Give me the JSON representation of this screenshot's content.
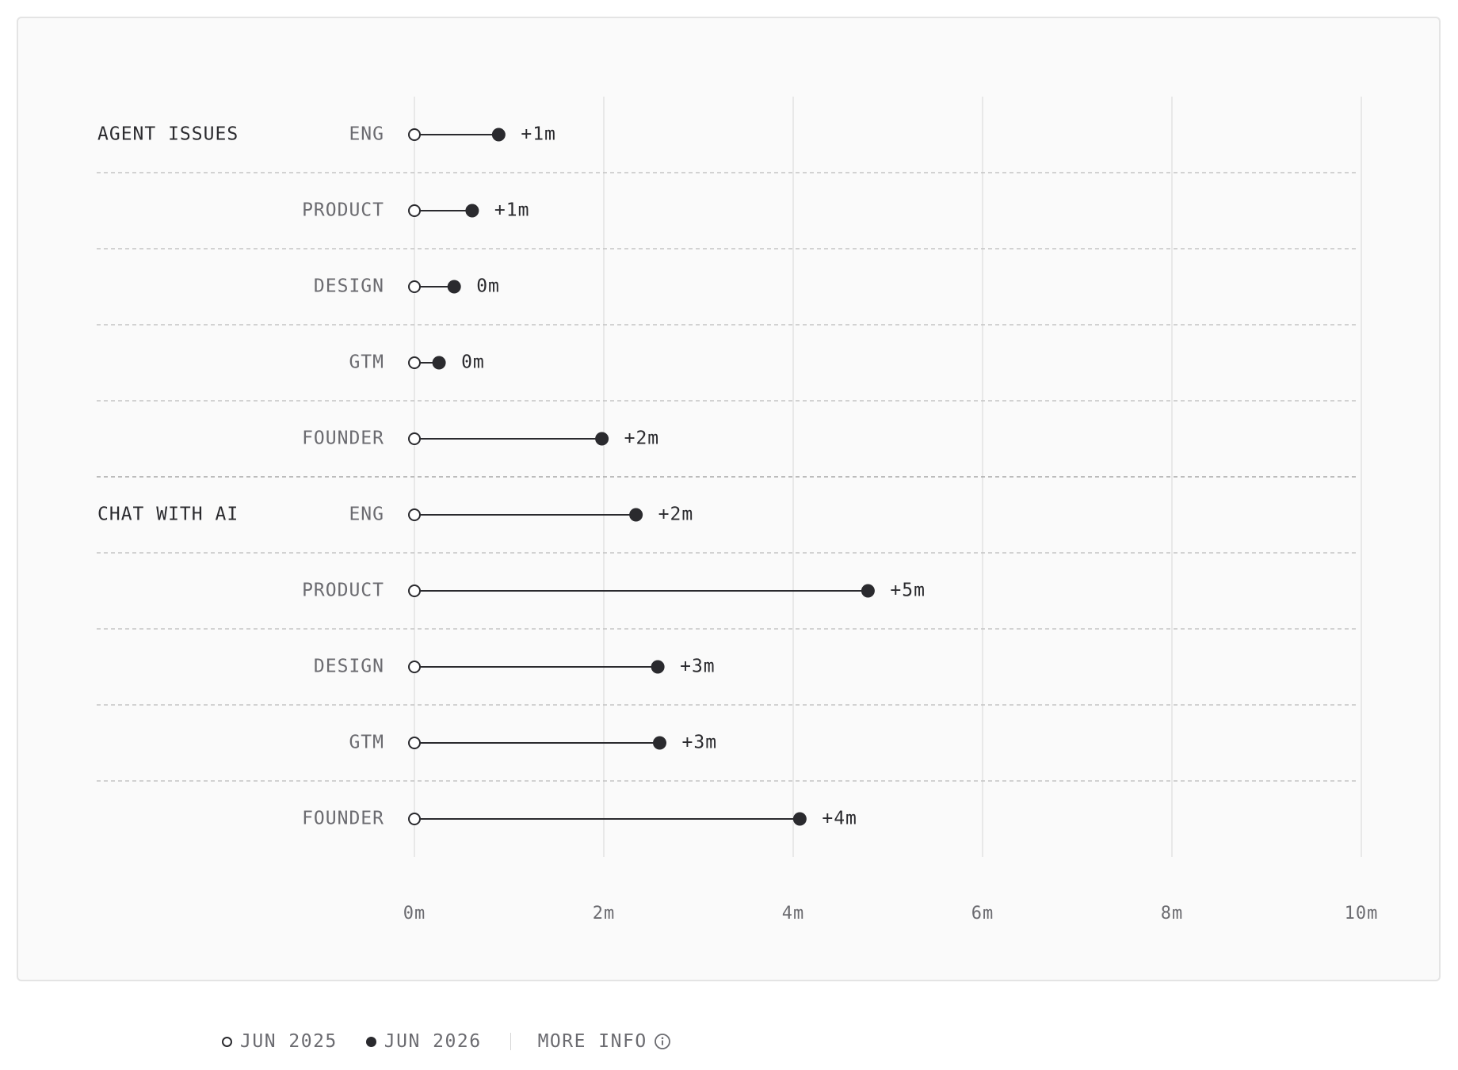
{
  "chart_data": {
    "type": "dumbbell",
    "x_axis": {
      "min": 0,
      "max": 10,
      "ticks": [
        {
          "value": 0,
          "label": "0m"
        },
        {
          "value": 2,
          "label": "2m"
        },
        {
          "value": 4,
          "label": "4m"
        },
        {
          "value": 6,
          "label": "6m"
        },
        {
          "value": 8,
          "label": "8m"
        },
        {
          "value": 10,
          "label": "10m"
        }
      ],
      "grid": true
    },
    "series": [
      {
        "name": "JUN 2025",
        "marker": "open-circle"
      },
      {
        "name": "JUN 2026",
        "marker": "filled-circle"
      }
    ],
    "groups": [
      {
        "label": "AGENT ISSUES",
        "rows": [
          {
            "category": "ENG",
            "start": 0,
            "end": 0.89,
            "delta_label": "+1m"
          },
          {
            "category": "PRODUCT",
            "start": 0,
            "end": 0.61,
            "delta_label": "+1m"
          },
          {
            "category": "DESIGN",
            "start": 0,
            "end": 0.42,
            "delta_label": "0m"
          },
          {
            "category": "GTM",
            "start": 0,
            "end": 0.26,
            "delta_label": "0m"
          },
          {
            "category": "FOUNDER",
            "start": 0,
            "end": 1.98,
            "delta_label": "+2m"
          }
        ]
      },
      {
        "label": "CHAT WITH AI",
        "rows": [
          {
            "category": "ENG",
            "start": 0,
            "end": 2.34,
            "delta_label": "+2m"
          },
          {
            "category": "PRODUCT",
            "start": 0,
            "end": 4.79,
            "delta_label": "+5m"
          },
          {
            "category": "DESIGN",
            "start": 0,
            "end": 2.57,
            "delta_label": "+3m"
          },
          {
            "category": "GTM",
            "start": 0,
            "end": 2.59,
            "delta_label": "+3m"
          },
          {
            "category": "FOUNDER",
            "start": 0,
            "end": 4.07,
            "delta_label": "+4m"
          }
        ]
      }
    ]
  },
  "legend": {
    "items": [
      {
        "label": "JUN 2025",
        "marker": "open-circle"
      },
      {
        "label": "JUN 2026",
        "marker": "filled-circle"
      }
    ],
    "more_info_label": "MORE INFO"
  },
  "colors": {
    "ink": "#2a2a2e",
    "muted_text": "#6b6b70",
    "dark_text": "#2a2a2e",
    "grid": "#e2e2e2",
    "row_divider": "#c4c4c4",
    "card_bg": "#fafafa"
  }
}
